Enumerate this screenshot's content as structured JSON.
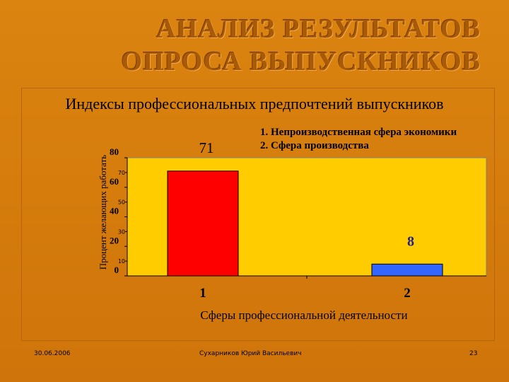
{
  "slide": {
    "title_line1": "АНАЛИЗ  РЕЗУЛЬТАТОВ",
    "title_line2": "ОПРОСА  ВЫПУСКНИКОВ",
    "footer_date": "30.06.2006",
    "footer_author": "Сухарников Юрий Васильевич",
    "footer_page": "23"
  },
  "chart_data": {
    "type": "bar",
    "title": "Индексы профессиональных предпочтений выпускников",
    "xlabel": "Сферы профессиональной деятельности",
    "ylabel": "Процент желающих работать",
    "categories": [
      "1",
      "2"
    ],
    "values": [
      71,
      8
    ],
    "bar_colors": [
      "#ff0000",
      "#3366ff"
    ],
    "data_label_colors": [
      "#000000",
      "#1f1f8f"
    ],
    "legend": [
      "1.  Непроизводственная сфера экономики",
      "2.  Сфера производства"
    ],
    "ylim": [
      0,
      80
    ],
    "major_ticks": [
      "0",
      "20",
      "40",
      "60",
      "80"
    ],
    "minor_ticks": [
      "10",
      "30",
      "50",
      "70"
    ],
    "plot_background": "#ffcc00",
    "grid": false
  }
}
